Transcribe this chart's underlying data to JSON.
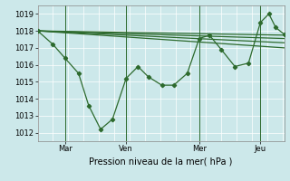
{
  "background_color": "#cce8ea",
  "grid_color": "#ffffff",
  "line_color": "#2d6a2d",
  "xlabel": "Pression niveau de la mer( hPa )",
  "ylim": [
    1011.5,
    1019.5
  ],
  "yticks": [
    1012,
    1013,
    1014,
    1015,
    1016,
    1017,
    1018,
    1019
  ],
  "x_tick_labels": [
    "Mar",
    "Ven",
    "Mer",
    "Jeu"
  ],
  "x_tick_positions": [
    16,
    52,
    95,
    131
  ],
  "xlim": [
    0,
    145
  ],
  "straight_lines": [
    {
      "x": [
        0,
        145
      ],
      "y": [
        1018.0,
        1017.0
      ]
    },
    {
      "x": [
        0,
        145
      ],
      "y": [
        1018.0,
        1017.3
      ]
    },
    {
      "x": [
        0,
        145
      ],
      "y": [
        1018.0,
        1017.55
      ]
    },
    {
      "x": [
        0,
        145
      ],
      "y": [
        1018.0,
        1017.75
      ]
    }
  ],
  "jagged_line_x": [
    0,
    9,
    16,
    24,
    30,
    37,
    44,
    52,
    59,
    65,
    73,
    80,
    88,
    95,
    101,
    108,
    116,
    124,
    131,
    136,
    140,
    145
  ],
  "jagged_line_y": [
    1018.0,
    1017.2,
    1016.4,
    1015.5,
    1013.6,
    1012.2,
    1012.8,
    1015.2,
    1015.9,
    1015.3,
    1014.8,
    1014.8,
    1015.5,
    1017.55,
    1017.75,
    1016.9,
    1015.9,
    1016.1,
    1018.5,
    1019.0,
    1018.2,
    1017.8
  ],
  "has_markers_at": [
    0,
    9,
    16,
    24,
    30,
    37,
    44,
    52,
    59,
    65,
    73,
    80,
    88,
    95,
    101,
    108,
    116,
    124,
    131,
    136,
    140,
    145
  ]
}
